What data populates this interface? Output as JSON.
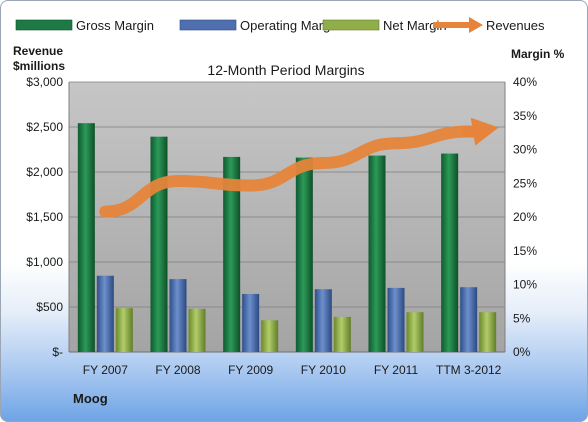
{
  "chart_data": {
    "type": "bar",
    "title": "12-Month Period Margins",
    "company": "Moog",
    "y_left_label_line1": "Revenue",
    "y_left_label_line2": "$millions",
    "y_right_label": "Margin %",
    "categories": [
      "FY 2007",
      "FY 2008",
      "FY 2009",
      "FY 2010",
      "FY 2011",
      "TTM 3-2012"
    ],
    "y_left_ticks": [
      "$-",
      "$500",
      "$1,000",
      "$1,500",
      "$2,000",
      "$2,500",
      "$3,000"
    ],
    "y_right_ticks": [
      "0%",
      "5%",
      "10%",
      "15%",
      "20%",
      "25%",
      "30%",
      "35%",
      "40%"
    ],
    "ylim_left": [
      0,
      3000
    ],
    "ylim_right": [
      0,
      40
    ],
    "series": [
      {
        "name": "Gross Margin",
        "axis": "right",
        "color": "#1e7a45",
        "values": [
          33.9,
          31.9,
          28.9,
          28.8,
          29.1,
          29.4
        ]
      },
      {
        "name": "Operating Margin",
        "axis": "right",
        "color": "#4f6fb0",
        "values": [
          11.3,
          10.8,
          8.6,
          9.3,
          9.5,
          9.6
        ]
      },
      {
        "name": "Net Margin",
        "axis": "right",
        "color": "#8fae4a",
        "values": [
          6.5,
          6.4,
          4.7,
          5.2,
          5.9,
          5.9
        ]
      },
      {
        "name": "Revenues",
        "axis": "left",
        "color": "#e5843a",
        "values": [
          1560,
          1900,
          1850,
          2100,
          2320,
          2450
        ]
      }
    ],
    "grid": true,
    "legend_position": "top"
  }
}
